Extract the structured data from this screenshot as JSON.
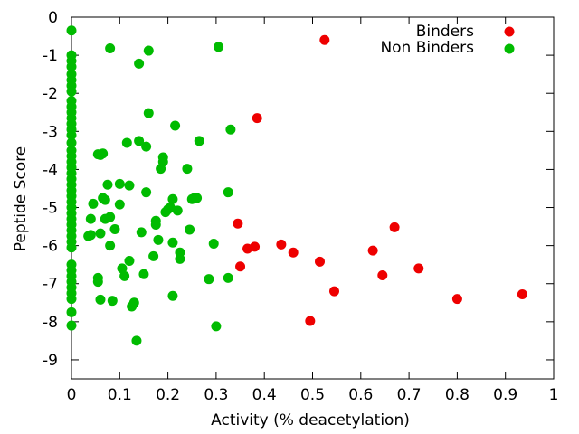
{
  "chart_data": {
    "type": "scatter",
    "xlabel": "Activity (% deacetylation)",
    "ylabel": "Peptide Score",
    "xlim": [
      0,
      1
    ],
    "ylim": [
      -9.5,
      0
    ],
    "x_ticks": [
      "0",
      "0.1",
      "0.2",
      "0.3",
      "0.4",
      "0.5",
      "0.6",
      "0.7",
      "0.8",
      "0.9",
      "1"
    ],
    "y_ticks": [
      "0",
      "-1",
      "-2",
      "-3",
      "-4",
      "-5",
      "-6",
      "-7",
      "-8",
      "-9"
    ],
    "grid": false,
    "legend_position": "top-right",
    "series": [
      {
        "name": "Binders",
        "color": "#ee0000",
        "points": [
          [
            0.525,
            -0.6
          ],
          [
            0.385,
            -2.65
          ],
          [
            0.345,
            -5.42
          ],
          [
            0.365,
            -6.08
          ],
          [
            0.38,
            -6.03
          ],
          [
            0.35,
            -6.55
          ],
          [
            0.435,
            -5.97
          ],
          [
            0.46,
            -6.18
          ],
          [
            0.515,
            -6.42
          ],
          [
            0.545,
            -7.2
          ],
          [
            0.495,
            -7.98
          ],
          [
            0.625,
            -6.13
          ],
          [
            0.645,
            -6.78
          ],
          [
            0.67,
            -5.52
          ],
          [
            0.72,
            -6.6
          ],
          [
            0.8,
            -7.4
          ],
          [
            0.935,
            -7.28
          ]
        ]
      },
      {
        "name": "Non Binders",
        "color": "#00bb00",
        "points": [
          [
            0,
            -0.35
          ],
          [
            0,
            -1.0
          ],
          [
            0,
            -1.15
          ],
          [
            0,
            -1.3
          ],
          [
            0,
            -1.5
          ],
          [
            0,
            -1.65
          ],
          [
            0,
            -1.8
          ],
          [
            0,
            -1.95
          ],
          [
            0,
            -2.2
          ],
          [
            0,
            -2.35
          ],
          [
            0,
            -2.5
          ],
          [
            0,
            -2.65
          ],
          [
            0,
            -2.8
          ],
          [
            0,
            -2.95
          ],
          [
            0,
            -3.1
          ],
          [
            0,
            -3.3
          ],
          [
            0,
            -3.5
          ],
          [
            0,
            -3.65
          ],
          [
            0,
            -3.8
          ],
          [
            0,
            -3.95
          ],
          [
            0,
            -4.1
          ],
          [
            0,
            -4.25
          ],
          [
            0,
            -4.4
          ],
          [
            0,
            -4.55
          ],
          [
            0,
            -4.7
          ],
          [
            0,
            -4.85
          ],
          [
            0,
            -5.0
          ],
          [
            0,
            -5.15
          ],
          [
            0,
            -5.3
          ],
          [
            0,
            -5.45
          ],
          [
            0,
            -5.6
          ],
          [
            0,
            -5.75
          ],
          [
            0,
            -5.9
          ],
          [
            0,
            -6.05
          ],
          [
            0,
            -6.5
          ],
          [
            0,
            -6.65
          ],
          [
            0,
            -6.8
          ],
          [
            0,
            -6.95
          ],
          [
            0,
            -7.1
          ],
          [
            0,
            -7.25
          ],
          [
            0,
            -7.4
          ],
          [
            0,
            -7.75
          ],
          [
            0,
            -8.1
          ],
          [
            0.045,
            -4.9
          ],
          [
            0.04,
            -5.3
          ],
          [
            0.035,
            -5.75
          ],
          [
            0.04,
            -5.72
          ],
          [
            0.055,
            -3.6
          ],
          [
            0.06,
            -3.62
          ],
          [
            0.065,
            -3.58
          ],
          [
            0.06,
            -5.68
          ],
          [
            0.055,
            -6.85
          ],
          [
            0.055,
            -6.95
          ],
          [
            0.06,
            -7.42
          ],
          [
            0.065,
            -4.75
          ],
          [
            0.07,
            -4.8
          ],
          [
            0.075,
            -4.4
          ],
          [
            0.07,
            -5.3
          ],
          [
            0.08,
            -5.25
          ],
          [
            0.08,
            -6.0
          ],
          [
            0.08,
            -0.82
          ],
          [
            0.085,
            -7.45
          ],
          [
            0.09,
            -5.57
          ],
          [
            0.1,
            -4.38
          ],
          [
            0.1,
            -4.92
          ],
          [
            0.105,
            -6.6
          ],
          [
            0.11,
            -6.8
          ],
          [
            0.115,
            -3.3
          ],
          [
            0.12,
            -6.4
          ],
          [
            0.12,
            -4.42
          ],
          [
            0.125,
            -7.6
          ],
          [
            0.13,
            -7.5
          ],
          [
            0.135,
            -8.5
          ],
          [
            0.14,
            -1.22
          ],
          [
            0.14,
            -3.25
          ],
          [
            0.145,
            -5.65
          ],
          [
            0.15,
            -6.75
          ],
          [
            0.155,
            -3.4
          ],
          [
            0.155,
            -4.6
          ],
          [
            0.16,
            -0.88
          ],
          [
            0.16,
            -2.52
          ],
          [
            0.17,
            -6.28
          ],
          [
            0.175,
            -5.35
          ],
          [
            0.175,
            -5.45
          ],
          [
            0.18,
            -5.85
          ],
          [
            0.185,
            -3.98
          ],
          [
            0.19,
            -3.68
          ],
          [
            0.19,
            -3.8
          ],
          [
            0.195,
            -5.12
          ],
          [
            0.2,
            -5.05
          ],
          [
            0.205,
            -5.0
          ],
          [
            0.21,
            -4.78
          ],
          [
            0.21,
            -5.92
          ],
          [
            0.21,
            -7.32
          ],
          [
            0.215,
            -2.85
          ],
          [
            0.22,
            -5.08
          ],
          [
            0.225,
            -6.18
          ],
          [
            0.225,
            -6.35
          ],
          [
            0.24,
            -3.98
          ],
          [
            0.245,
            -5.58
          ],
          [
            0.25,
            -4.78
          ],
          [
            0.255,
            -4.75
          ],
          [
            0.26,
            -4.75
          ],
          [
            0.265,
            -3.25
          ],
          [
            0.285,
            -6.88
          ],
          [
            0.295,
            -5.95
          ],
          [
            0.3,
            -8.12
          ],
          [
            0.305,
            -0.78
          ],
          [
            0.325,
            -4.6
          ],
          [
            0.33,
            -2.95
          ],
          [
            0.325,
            -6.85
          ]
        ]
      }
    ]
  }
}
